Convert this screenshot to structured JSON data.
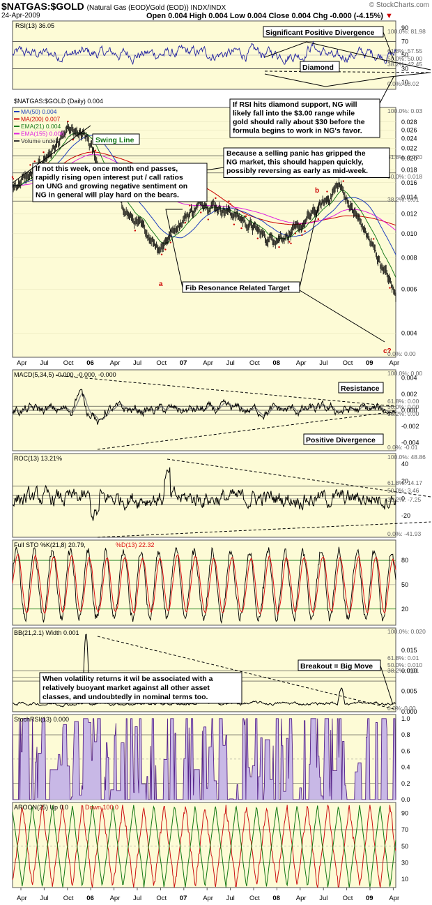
{
  "header": {
    "symbol": "$NATGAS:$GOLD",
    "subtitle": "(Natural Gas (EOD)/Gold (EOD))  INDX/INDX",
    "date": "24-Apr-2009",
    "ohlc": "Open 0.004  High 0.004  Low 0.004  Close 0.004  Chg -0.000 (-4.15%)",
    "brand": "© StockCharts.com"
  },
  "colors": {
    "panel_bg": "#fdfbd6",
    "price": "#000000",
    "ma50": "#1f3fbf",
    "ma200": "#cc0000",
    "ema21": "#1a7a1a",
    "ema155": "#e020e0",
    "rsi": "#2020a0",
    "stoch_d": "#dd1111",
    "aroon_up": "#117711",
    "aroon_down": "#cc1111",
    "stochrsi": "#552288"
  },
  "chart_data": [
    {
      "type": "line",
      "panel": "rsi",
      "label": "RSI(13) 36.05",
      "last": 36.05,
      "y_ticks": [
        90,
        70,
        50,
        30,
        10
      ],
      "levels_labels": [
        "100.0%: 81.98",
        "61.8%: 57.55",
        "50.0%: 50.00",
        "38.2%: 42.45",
        "0.0%: 18.02"
      ],
      "ylim": [
        0,
        100
      ]
    },
    {
      "type": "line",
      "panel": "price",
      "label": "$NATGAS:$GOLD (Daily) 0.004",
      "legend": [
        "MA(50) 0.004",
        "MA(200) 0.007",
        "EMA(21) 0.004",
        "EMA(155) 0.006",
        "Volume undef"
      ],
      "y_ticks": [
        0.028,
        0.026,
        0.024,
        0.022,
        0.02,
        0.018,
        0.016,
        0.014,
        0.012,
        0.01,
        0.008,
        0.006,
        0.004
      ],
      "y_tick_labels": [
        "0.028",
        "0.026",
        "0.024",
        "0.022",
        "0.020",
        "0.018",
        "0.016",
        "0.014",
        "0.012",
        "0.010",
        "0.008",
        "0.006",
        "0.004"
      ],
      "levels_labels": [
        "100.0%: 0.03",
        "61.8%: 0.020",
        "50.0%: 0.018",
        "38.2%: 0.01",
        "0.0%: 0.00"
      ],
      "wave_labels": [
        "b",
        "a",
        "c?"
      ],
      "log_scale": true,
      "ylim": [
        0.0032,
        0.032
      ]
    },
    {
      "type": "line",
      "panel": "macd",
      "label": "MACD(5,34,5) -0.000, -0.000, -0.000",
      "y_ticks": [
        0.004,
        0.002,
        0.0,
        -0.002,
        -0.004
      ],
      "y_tick_labels": [
        "0.004",
        "0.002",
        "0.000",
        "-0.002",
        "-0.004"
      ],
      "levels_labels": [
        "100.0%: 0.00",
        "61.8%: 0.00",
        "50.0%: 0.00",
        "38.2%: 0.00",
        "0.0%: -0.01"
      ]
    },
    {
      "type": "line",
      "panel": "roc",
      "label": "ROC(13) 13.21%",
      "y_ticks": [
        40,
        20,
        0,
        -20
      ],
      "levels_labels": [
        "100.0%: 48.86",
        "61.8%: 14.17",
        "50.0%: 3.46",
        "38.2%: -7.25",
        "0.0%: -41.93"
      ]
    },
    {
      "type": "line",
      "panel": "sto",
      "label_k": "Full STO %K(21,8) 20.79,",
      "label_d": "%D(13) 22.32",
      "y_ticks": [
        80,
        50,
        20
      ]
    },
    {
      "type": "line",
      "panel": "bbw",
      "label": "BB(21,2.1) Width 0.001",
      "y_ticks": [
        0.015,
        0.01,
        0.005,
        0.0
      ],
      "y_tick_labels": [
        "0.015",
        "0.010",
        "0.005",
        "0.000"
      ],
      "levels_labels": [
        "100.0%: 0.020",
        "61.8%: 0.01",
        "50.0%: 0.010",
        "38.2%: 0.01",
        "0.0%: 0.00"
      ]
    },
    {
      "type": "area",
      "panel": "stochrsi",
      "label": "StochRSI(13) 0.000",
      "y_ticks": [
        1.0,
        0.8,
        0.6,
        0.4,
        0.2,
        0.0
      ],
      "y_tick_labels": [
        "1.0",
        "0.8",
        "0.6",
        "0.4",
        "0.2",
        "0.0"
      ]
    },
    {
      "type": "line",
      "panel": "aroon",
      "label_up": "AROON(25) Up 0.0",
      "label_down": "Down 100.0",
      "y_ticks": [
        90,
        70,
        50,
        30,
        10
      ]
    }
  ],
  "x_axis": {
    "labels": [
      "Apr",
      "Jul",
      "Oct",
      "06",
      "Apr",
      "Jul",
      "Oct",
      "07",
      "Apr",
      "Jul",
      "Oct",
      "08",
      "Apr",
      "Jul",
      "Oct",
      "09",
      "Apr"
    ],
    "bold": [
      false,
      false,
      false,
      true,
      false,
      false,
      false,
      true,
      false,
      false,
      false,
      true,
      false,
      false,
      false,
      true,
      false
    ]
  },
  "annotations": {
    "rsi_divergence": "Significant Positive Divergence",
    "rsi_diamond": "Diamond",
    "rsi_support_note": [
      "If RSI hits diamond support, NG will",
      "likely fall into the $3.00 range while",
      "gold should rally about $30 before the",
      "formula begins to work in NG's favor."
    ],
    "swing_line": "Swing Line",
    "panic_note": [
      "Because a selling panic has gripped the",
      "NG market, this should happen quickly,",
      "possibly reversing as early as mid-week."
    ],
    "month_end_note": [
      "If not this week, once month end passes,",
      "rapidly rising open interest put / call ratios",
      "on UNG and growing negative sentiment on",
      "NG in general will play hard on the bears."
    ],
    "fib_target": "Fib Resonance Related Target",
    "macd_resistance": "Resistance",
    "macd_divergence": "Positive Divergence",
    "breakout": "Breakout = Big Move",
    "volatility_note": [
      "When volatility returns it wil be associated with a",
      "relatively buoyant market against all other asset",
      "classes, and undoubtedly in nominal terms too."
    ]
  }
}
